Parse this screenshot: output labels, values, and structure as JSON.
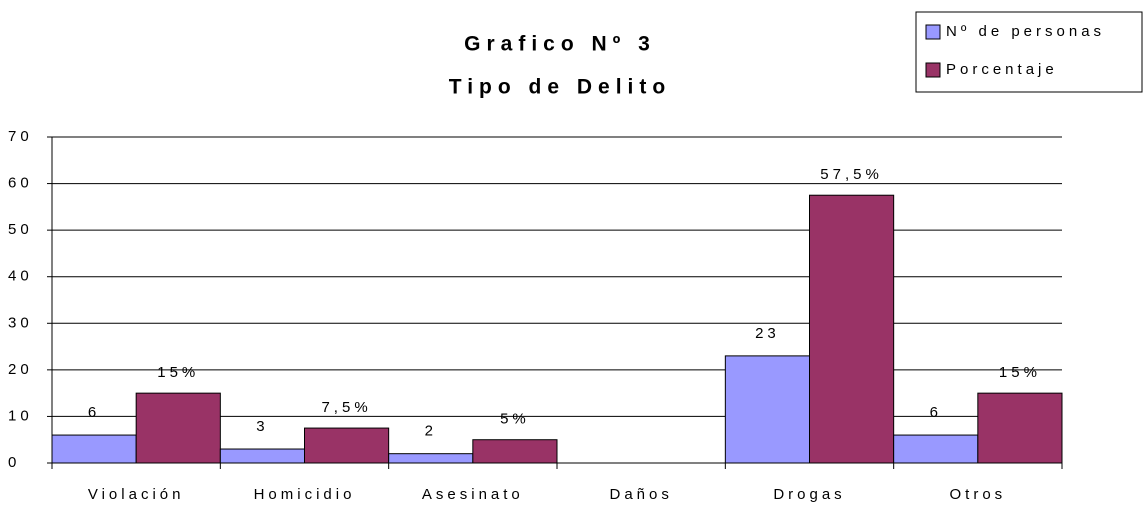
{
  "chart_data": {
    "type": "bar",
    "title": "Grafico Nº 3",
    "subtitle": "Tipo de Delito",
    "categories": [
      "Violación",
      "Homicidio",
      "Asesinato",
      "Daños",
      "Drogas",
      "Otros"
    ],
    "series": [
      {
        "name": "Nº de personas",
        "color": "#9999ff",
        "values": [
          6,
          3,
          2,
          null,
          23,
          6
        ]
      },
      {
        "name": "Porcentaje",
        "color": "#993366",
        "values": [
          15,
          7.5,
          5,
          null,
          57.5,
          15
        ],
        "value_labels": [
          "15%",
          "7,5%",
          "5%",
          null,
          "57,5%",
          "15%"
        ]
      }
    ],
    "ylim": [
      0,
      70
    ],
    "yticks": [
      0,
      10,
      20,
      30,
      40,
      50,
      60,
      70
    ],
    "grid": true,
    "legend": "top-right"
  }
}
